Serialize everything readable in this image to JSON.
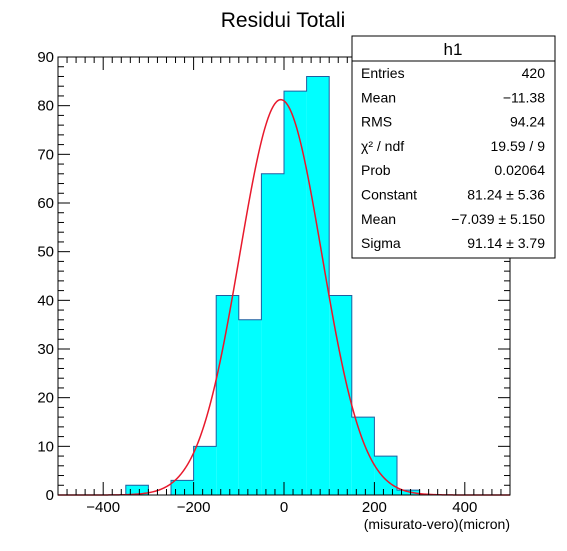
{
  "chart_data": {
    "type": "bar",
    "title": "Residui Totali",
    "xlabel": "(misurato-vero)(micron)",
    "ylabel": "",
    "xlim": [
      -500,
      500
    ],
    "ylim": [
      0,
      90
    ],
    "xticks": [
      -400,
      -200,
      0,
      200,
      400
    ],
    "xtick_labels": [
      "−400",
      "−200",
      "0",
      "200",
      "400"
    ],
    "yticks": [
      0,
      10,
      20,
      30,
      40,
      50,
      60,
      70,
      80,
      90
    ],
    "ytick_labels": [
      "0",
      "10",
      "20",
      "30",
      "40",
      "50",
      "60",
      "70",
      "80",
      "90"
    ],
    "grid": false,
    "histogram": {
      "name": "h1",
      "bin_width": 50,
      "bin_low_edges": [
        -500,
        -450,
        -400,
        -350,
        -300,
        -250,
        -200,
        -150,
        -100,
        -50,
        0,
        50,
        100,
        150,
        200,
        250,
        300,
        350,
        400,
        450
      ],
      "values": [
        0,
        0,
        0,
        2,
        0,
        3,
        10,
        41,
        36,
        66,
        83,
        86,
        41,
        16,
        8,
        1,
        0,
        0,
        0,
        0
      ],
      "fill_color": "#00FFFF",
      "line_color": "#1F5FA0"
    },
    "fit": {
      "function": "gaus",
      "constant": 81.24,
      "mean": -7.039,
      "sigma": 91.14,
      "color": "#E8192C"
    },
    "stats_box": {
      "title": "h1",
      "placement": "top-right",
      "rows": [
        {
          "label": "Entries",
          "value": "420"
        },
        {
          "label": "Mean",
          "value": "−11.38"
        },
        {
          "label": "RMS",
          "value": "94.24"
        },
        {
          "label": "χ² / ndf",
          "value": "19.59 / 9"
        },
        {
          "label": "Prob",
          "value": "0.02064"
        },
        {
          "label": "Constant",
          "value": "81.24 ± 5.36"
        },
        {
          "label": "Mean",
          "value": "−7.039 ± 5.150"
        },
        {
          "label": "Sigma",
          "value": "91.14 ± 3.79"
        }
      ]
    }
  }
}
